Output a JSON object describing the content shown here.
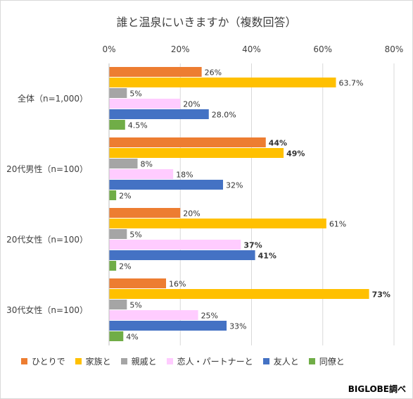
{
  "chart_data": {
    "type": "bar",
    "orientation": "horizontal",
    "title": "誰と温泉にいきますか（複数回答）",
    "x_ticks": [
      "0%",
      "20%",
      "40%",
      "60%",
      "80%"
    ],
    "xlim": [
      0,
      80
    ],
    "grid": true,
    "legend_position": "bottom",
    "categories": [
      "全体（n=1,000）",
      "20代男性（n=100）",
      "20代女性（n=100）",
      "30代女性（n=100）"
    ],
    "series": [
      {
        "name": "ひとりで",
        "color": "#ED7D31",
        "values": [
          26,
          44,
          20,
          16
        ],
        "labels": [
          "26%",
          "44%",
          "20%",
          "16%"
        ],
        "bold": [
          false,
          true,
          false,
          false
        ]
      },
      {
        "name": "家族と",
        "color": "#FFC000",
        "values": [
          63.7,
          49,
          61,
          73
        ],
        "labels": [
          "63.7%",
          "49%",
          "61%",
          "73%"
        ],
        "bold": [
          false,
          true,
          false,
          true
        ]
      },
      {
        "name": "親戚と",
        "color": "#A5A5A5",
        "values": [
          5,
          8,
          5,
          5
        ],
        "labels": [
          "5%",
          "8%",
          "5%",
          "5%"
        ],
        "bold": [
          false,
          false,
          false,
          false
        ]
      },
      {
        "name": "恋人・パートナーと",
        "color": "#FFCCFF",
        "values": [
          20,
          18,
          37,
          25
        ],
        "labels": [
          "20%",
          "18%",
          "37%",
          "25%"
        ],
        "bold": [
          false,
          false,
          true,
          false
        ]
      },
      {
        "name": "友人と",
        "color": "#4472C4",
        "values": [
          28.0,
          32,
          41,
          33
        ],
        "labels": [
          "28.0%",
          "32%",
          "41%",
          "33%"
        ],
        "bold": [
          false,
          false,
          true,
          false
        ]
      },
      {
        "name": "同僚と",
        "color": "#70AD47",
        "values": [
          4.5,
          2,
          2,
          4
        ],
        "labels": [
          "4.5%",
          "2%",
          "2%",
          "4%"
        ],
        "bold": [
          false,
          false,
          false,
          false
        ]
      }
    ]
  },
  "credit": "BIGLOBE調べ"
}
